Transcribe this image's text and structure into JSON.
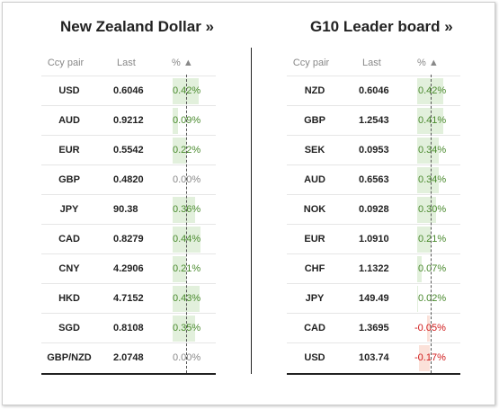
{
  "left": {
    "title": "New Zealand Dollar »",
    "headers": {
      "pair": "Ccy pair",
      "last": "Last",
      "pct": "% ▲"
    },
    "rows": [
      {
        "pair": "USD",
        "last": "0.6046",
        "pct": "0.42%",
        "value": 0.42
      },
      {
        "pair": "AUD",
        "last": "0.9212",
        "pct": "0.09%",
        "value": 0.09
      },
      {
        "pair": "EUR",
        "last": "0.5542",
        "pct": "0.22%",
        "value": 0.22
      },
      {
        "pair": "GBP",
        "last": "0.4820",
        "pct": "0.00%",
        "value": 0.0
      },
      {
        "pair": "JPY",
        "last": "90.38",
        "pct": "0.36%",
        "value": 0.36
      },
      {
        "pair": "CAD",
        "last": "0.8279",
        "pct": "0.44%",
        "value": 0.44
      },
      {
        "pair": "CNY",
        "last": "4.2906",
        "pct": "0.21%",
        "value": 0.21
      },
      {
        "pair": "HKD",
        "last": "4.7152",
        "pct": "0.43%",
        "value": 0.43
      },
      {
        "pair": "SGD",
        "last": "0.8108",
        "pct": "0.35%",
        "value": 0.35
      },
      {
        "pair": "GBP/NZD",
        "last": "2.0748",
        "pct": "0.00%",
        "value": 0.0
      }
    ]
  },
  "right": {
    "title": "G10 Leader board »",
    "headers": {
      "pair": "Ccy pair",
      "last": "Last",
      "pct": "% ▲"
    },
    "rows": [
      {
        "pair": "NZD",
        "last": "0.6046",
        "pct": "0.42%",
        "value": 0.42
      },
      {
        "pair": "GBP",
        "last": "1.2543",
        "pct": "0.41%",
        "value": 0.41
      },
      {
        "pair": "SEK",
        "last": "0.0953",
        "pct": "0.34%",
        "value": 0.34
      },
      {
        "pair": "AUD",
        "last": "0.6563",
        "pct": "0.34%",
        "value": 0.34
      },
      {
        "pair": "NOK",
        "last": "0.0928",
        "pct": "0.30%",
        "value": 0.3
      },
      {
        "pair": "EUR",
        "last": "1.0910",
        "pct": "0.21%",
        "value": 0.21
      },
      {
        "pair": "CHF",
        "last": "1.1322",
        "pct": "0.07%",
        "value": 0.07
      },
      {
        "pair": "JPY",
        "last": "149.49",
        "pct": "0.02%",
        "value": 0.02
      },
      {
        "pair": "CAD",
        "last": "1.3695",
        "pct": "-0.05%",
        "value": -0.05
      },
      {
        "pair": "USD",
        "last": "103.74",
        "pct": "-0.17%",
        "value": -0.17
      }
    ]
  },
  "colors": {
    "positive_bar": "#e2f0dc",
    "negative_bar": "#fbe1d9",
    "positive_text": "#4a8a2e",
    "negative_text": "#d01a1a"
  }
}
